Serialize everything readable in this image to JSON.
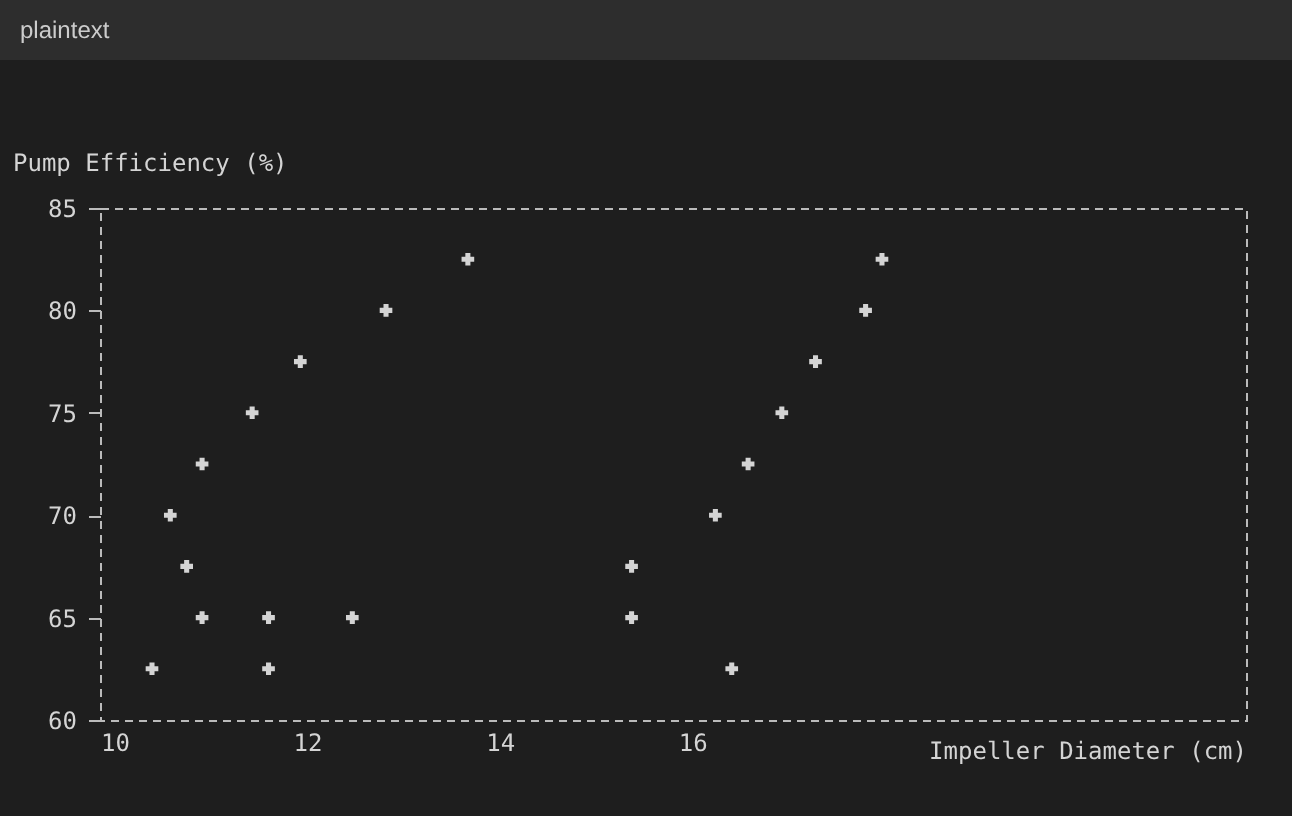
{
  "chart_data": {
    "type": "scatter",
    "ylabel": "Pump Efficiency (%)",
    "xlabel": "Impeller Diameter (cm)",
    "annotations": [
      "plaintext"
    ],
    "x": [
      13.67,
      17.97,
      12.82,
      17.8,
      11.93,
      17.28,
      11.43,
      16.93,
      10.91,
      16.58,
      10.58,
      16.24,
      10.75,
      15.37,
      10.91,
      11.6,
      12.47,
      15.37,
      10.39,
      11.6,
      16.41
    ],
    "values": [
      82.5,
      82.5,
      80,
      80,
      77.5,
      77.5,
      75,
      75,
      72.5,
      72.5,
      70,
      70,
      67.5,
      67.5,
      65,
      65,
      65,
      65,
      62.5,
      62.5,
      62.5
    ],
    "color": "#d4d4d4",
    "marker": "cross",
    "xlim": [
      9.85,
      21.75
    ],
    "xticks": [
      10,
      12,
      14,
      16
    ],
    "ylim": [
      60,
      85
    ],
    "yticks": [
      60,
      65,
      70,
      75,
      80,
      85
    ],
    "grid": false
  }
}
